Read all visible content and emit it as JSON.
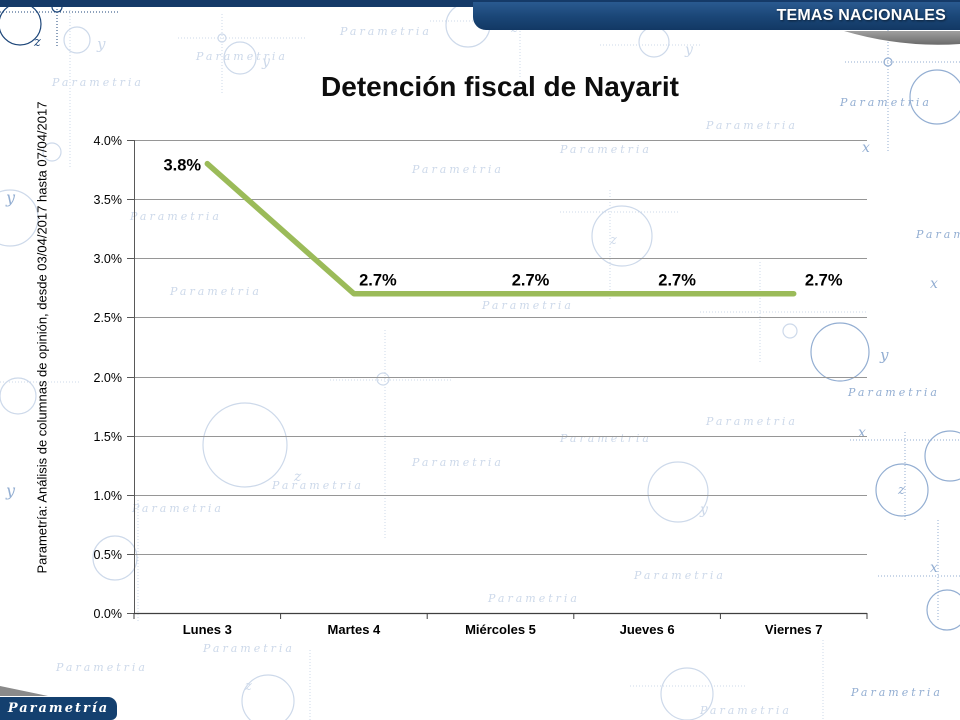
{
  "header": {
    "label": "TEMAS NACIONALES"
  },
  "slide": {
    "title": "Detención fiscal de Nayarit",
    "source_note": "Parametría: Análisis de columnas de opinión, desde 03/04/2017 hasta 07/04/2017",
    "logo_text": "Parametría",
    "watermark_text": "Parametria"
  },
  "colors": {
    "navy": "#1B4778",
    "strip_navy": "#153A68",
    "line_green": "#9BBB59",
    "grid_gray": "#969696",
    "axis_gray": "#595959",
    "swoosh_gray": "#8C8C8C",
    "watermark_light": "#CDD9EA",
    "watermark_mid": "#93AED2",
    "watermark_dark": "#1D4679"
  },
  "chart_data": {
    "type": "line",
    "title": "Detención fiscal de Nayarit",
    "categories": [
      "Lunes 3",
      "Martes 4",
      "Miércoles 5",
      "Jueves 6",
      "Viernes 7"
    ],
    "series": [
      {
        "name": "Detención fiscal de Nayarit",
        "values": [
          3.8,
          2.7,
          2.7,
          2.7,
          2.7
        ]
      }
    ],
    "data_labels": [
      "3.8%",
      "2.7%",
      "2.7%",
      "2.7%",
      "2.7%"
    ],
    "ylim": [
      0,
      4
    ],
    "ytick_step": 0.5,
    "ytick_labels": [
      "0.0%",
      "0.5%",
      "1.0%",
      "1.5%",
      "2.0%",
      "2.5%",
      "3.0%",
      "3.5%",
      "4.0%"
    ],
    "grid": true,
    "legend": "none",
    "line_color": "#9BBB59"
  }
}
